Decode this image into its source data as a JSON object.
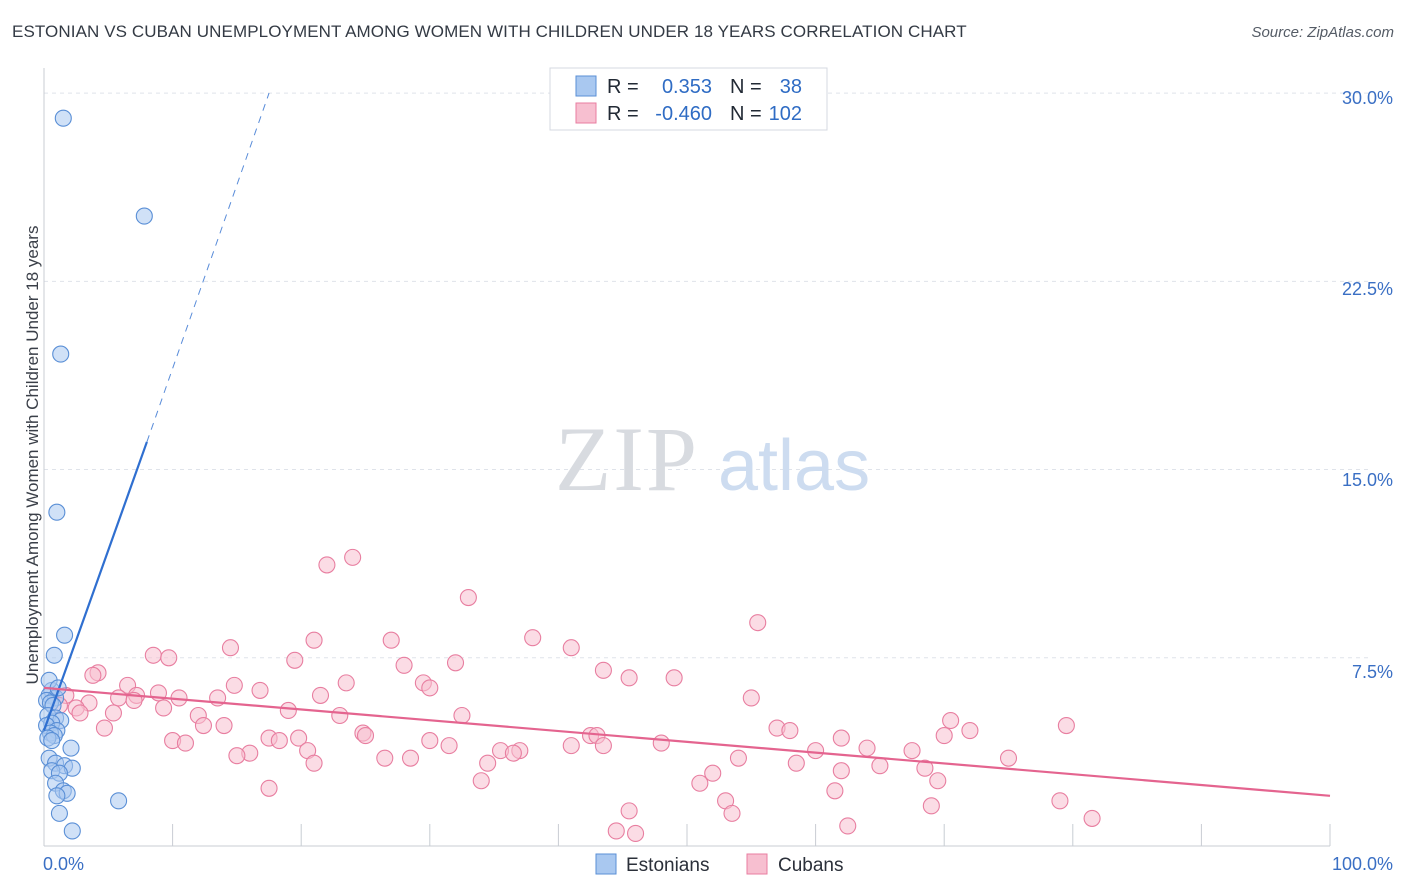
{
  "title": "ESTONIAN VS CUBAN UNEMPLOYMENT AMONG WOMEN WITH CHILDREN UNDER 18 YEARS CORRELATION CHART",
  "source": "Source: ZipAtlas.com",
  "watermark": {
    "zip": "ZIP",
    "atlas": "atlas"
  },
  "colors": {
    "estonians_fill": "#a9c8f0",
    "estonians_stroke": "#5a8fd6",
    "estonians_line": "#2f6fd0",
    "cubans_fill": "#f7bfd0",
    "cubans_stroke": "#e87ea0",
    "cubans_line": "#e4648f",
    "grid": "#dfe3ea",
    "tick_text": "#3a6fc4"
  },
  "stats_legend": {
    "row1": {
      "r_label": "R =",
      "r_value": "0.353",
      "n_label": "N =",
      "n_value": "38"
    },
    "row2": {
      "r_label": "R =",
      "r_value": "-0.460",
      "n_label": "N =",
      "n_value": "102"
    }
  },
  "chart_data": {
    "type": "scatter",
    "title": "ESTONIAN VS CUBAN UNEMPLOYMENT AMONG WOMEN WITH CHILDREN UNDER 18 YEARS CORRELATION CHART",
    "xlabel": "",
    "ylabel": "Unemployment Among Women with Children Under 18 years",
    "xlim": [
      0,
      100
    ],
    "ylim": [
      0,
      31
    ],
    "x_tick_labels": [
      "0.0%",
      "100.0%"
    ],
    "y_ticks": [
      7.5,
      15.0,
      22.5,
      30.0
    ],
    "y_tick_labels": [
      "7.5%",
      "15.0%",
      "22.5%",
      "30.0%"
    ],
    "grid": true,
    "legend": [
      "Estonians",
      "Cubans"
    ],
    "series": [
      {
        "name": "Estonians",
        "r": 0.353,
        "n": 38,
        "trend": {
          "x0": 0,
          "y0": 4.6,
          "x1": 8,
          "y1": 16.1,
          "dash_to_x": 17.5,
          "dash_to_y": 30.0
        },
        "points": [
          [
            1.5,
            29.0
          ],
          [
            7.8,
            25.1
          ],
          [
            1.3,
            19.6
          ],
          [
            1.0,
            13.3
          ],
          [
            1.6,
            8.4
          ],
          [
            0.8,
            7.6
          ],
          [
            0.6,
            6.2
          ],
          [
            0.4,
            6.0
          ],
          [
            0.9,
            5.9
          ],
          [
            0.2,
            5.8
          ],
          [
            0.5,
            5.7
          ],
          [
            0.7,
            5.6
          ],
          [
            0.3,
            5.2
          ],
          [
            0.9,
            5.1
          ],
          [
            1.3,
            5.0
          ],
          [
            0.6,
            4.9
          ],
          [
            0.2,
            4.8
          ],
          [
            1.0,
            4.6
          ],
          [
            0.5,
            4.5
          ],
          [
            0.8,
            4.4
          ],
          [
            0.3,
            4.3
          ],
          [
            0.6,
            4.2
          ],
          [
            2.1,
            3.9
          ],
          [
            0.4,
            3.5
          ],
          [
            0.9,
            3.3
          ],
          [
            1.6,
            3.2
          ],
          [
            2.2,
            3.1
          ],
          [
            0.6,
            3.0
          ],
          [
            1.2,
            2.9
          ],
          [
            0.9,
            2.5
          ],
          [
            1.5,
            2.2
          ],
          [
            1.8,
            2.1
          ],
          [
            1.0,
            2.0
          ],
          [
            5.8,
            1.8
          ],
          [
            1.2,
            1.3
          ],
          [
            2.2,
            0.6
          ],
          [
            0.4,
            6.6
          ],
          [
            1.1,
            6.3
          ]
        ]
      },
      {
        "name": "Cubans",
        "r": -0.46,
        "n": 102,
        "trend": {
          "x0": 0,
          "y0": 6.3,
          "x1": 100,
          "y1": 2.0
        },
        "points": [
          [
            24.0,
            11.5
          ],
          [
            22.0,
            11.2
          ],
          [
            33.0,
            9.9
          ],
          [
            55.5,
            8.9
          ],
          [
            38.0,
            8.3
          ],
          [
            21.0,
            8.2
          ],
          [
            27.0,
            8.2
          ],
          [
            41.0,
            7.9
          ],
          [
            14.5,
            7.9
          ],
          [
            8.5,
            7.6
          ],
          [
            9.7,
            7.5
          ],
          [
            19.5,
            7.4
          ],
          [
            32.0,
            7.3
          ],
          [
            28.0,
            7.2
          ],
          [
            43.5,
            7.0
          ],
          [
            4.2,
            6.9
          ],
          [
            3.8,
            6.8
          ],
          [
            45.5,
            6.7
          ],
          [
            49.0,
            6.7
          ],
          [
            23.5,
            6.5
          ],
          [
            29.5,
            6.5
          ],
          [
            14.8,
            6.4
          ],
          [
            6.5,
            6.4
          ],
          [
            30.0,
            6.3
          ],
          [
            16.8,
            6.2
          ],
          [
            8.9,
            6.1
          ],
          [
            21.5,
            6.0
          ],
          [
            7.2,
            6.0
          ],
          [
            1.7,
            6.0
          ],
          [
            5.8,
            5.9
          ],
          [
            10.5,
            5.9
          ],
          [
            13.5,
            5.9
          ],
          [
            55.0,
            5.9
          ],
          [
            7.0,
            5.8
          ],
          [
            3.5,
            5.7
          ],
          [
            1.2,
            5.6
          ],
          [
            2.5,
            5.5
          ],
          [
            9.3,
            5.5
          ],
          [
            19.0,
            5.4
          ],
          [
            2.8,
            5.3
          ],
          [
            5.4,
            5.3
          ],
          [
            12.0,
            5.2
          ],
          [
            32.5,
            5.2
          ],
          [
            70.5,
            5.0
          ],
          [
            79.5,
            4.8
          ],
          [
            12.4,
            4.8
          ],
          [
            14.0,
            4.8
          ],
          [
            4.7,
            4.7
          ],
          [
            57.0,
            4.7
          ],
          [
            24.8,
            4.5
          ],
          [
            25.0,
            4.4
          ],
          [
            42.5,
            4.4
          ],
          [
            43.0,
            4.4
          ],
          [
            17.5,
            4.3
          ],
          [
            19.8,
            4.3
          ],
          [
            10.0,
            4.2
          ],
          [
            18.3,
            4.2
          ],
          [
            30.0,
            4.2
          ],
          [
            11.0,
            4.1
          ],
          [
            62.0,
            4.3
          ],
          [
            70.0,
            4.4
          ],
          [
            31.5,
            4.0
          ],
          [
            41.0,
            4.0
          ],
          [
            43.5,
            4.0
          ],
          [
            64.0,
            3.9
          ],
          [
            35.5,
            3.8
          ],
          [
            37.0,
            3.8
          ],
          [
            60.0,
            3.8
          ],
          [
            67.5,
            3.8
          ],
          [
            20.5,
            3.8
          ],
          [
            16.0,
            3.7
          ],
          [
            36.5,
            3.7
          ],
          [
            15.0,
            3.6
          ],
          [
            26.5,
            3.5
          ],
          [
            28.5,
            3.5
          ],
          [
            54.0,
            3.5
          ],
          [
            75.0,
            3.5
          ],
          [
            21.0,
            3.3
          ],
          [
            34.5,
            3.3
          ],
          [
            58.5,
            3.3
          ],
          [
            65.0,
            3.2
          ],
          [
            68.5,
            3.1
          ],
          [
            62.0,
            3.0
          ],
          [
            52.0,
            2.9
          ],
          [
            69.5,
            2.6
          ],
          [
            34.0,
            2.6
          ],
          [
            51.0,
            2.5
          ],
          [
            17.5,
            2.3
          ],
          [
            61.5,
            2.2
          ],
          [
            53.0,
            1.8
          ],
          [
            79.0,
            1.8
          ],
          [
            69.0,
            1.6
          ],
          [
            53.5,
            1.3
          ],
          [
            45.5,
            1.4
          ],
          [
            81.5,
            1.1
          ],
          [
            62.5,
            0.8
          ],
          [
            44.5,
            0.6
          ],
          [
            46.0,
            0.5
          ],
          [
            72.0,
            4.6
          ],
          [
            48.0,
            4.1
          ],
          [
            23.0,
            5.2
          ],
          [
            58.0,
            4.6
          ]
        ]
      }
    ]
  },
  "bottom_legend": {
    "estonians": "Estonians",
    "cubans": "Cubans"
  }
}
